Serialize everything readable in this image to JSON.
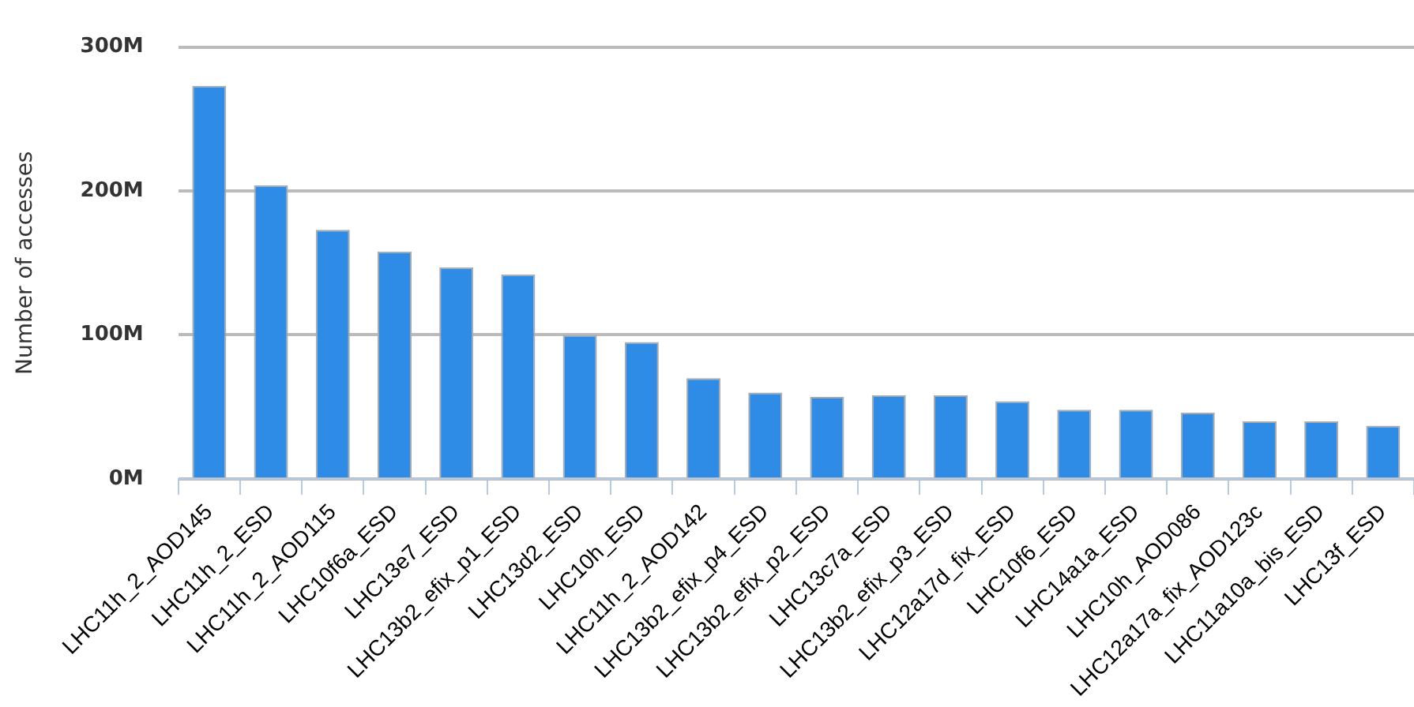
{
  "chart_data": {
    "type": "bar",
    "ylabel": "Number of accesses",
    "categories": [
      "LHC11h_2_AOD145",
      "LHC11h_2_ESD",
      "LHC11h_2_AOD115",
      "LHC10f6a_ESD",
      "LHC13e7_ESD",
      "LHC13b2_efix_p1_ESD",
      "LHC13d2_ESD",
      "LHC10h_ESD",
      "LHC11h_2_AOD142",
      "LHC13b2_efix_p4_ESD",
      "LHC13b2_efix_p2_ESD",
      "LHC13c7a_ESD",
      "LHC13b2_efix_p3_ESD",
      "LHC12a17d_fix_ESD",
      "LHC10f6_ESD",
      "LHC14a1a_ESD",
      "LHC10h_AOD086",
      "LHC12a17a_fix_AOD123c",
      "LHC11a10a_bis_ESD",
      "LHC13f_ESD"
    ],
    "values": [
      273,
      204,
      173,
      158,
      147,
      142,
      100,
      95,
      70,
      60,
      57,
      58,
      58,
      54,
      48,
      48,
      46,
      40,
      40,
      37
    ],
    "color": "#2e8be6",
    "ylim": [
      0,
      300
    ],
    "yticks": [
      {
        "value": 0,
        "label": "0M"
      },
      {
        "value": 100,
        "label": "100M"
      },
      {
        "value": 200,
        "label": "200M"
      },
      {
        "value": 300,
        "label": "300M"
      }
    ],
    "grid": "y",
    "legend": false
  }
}
